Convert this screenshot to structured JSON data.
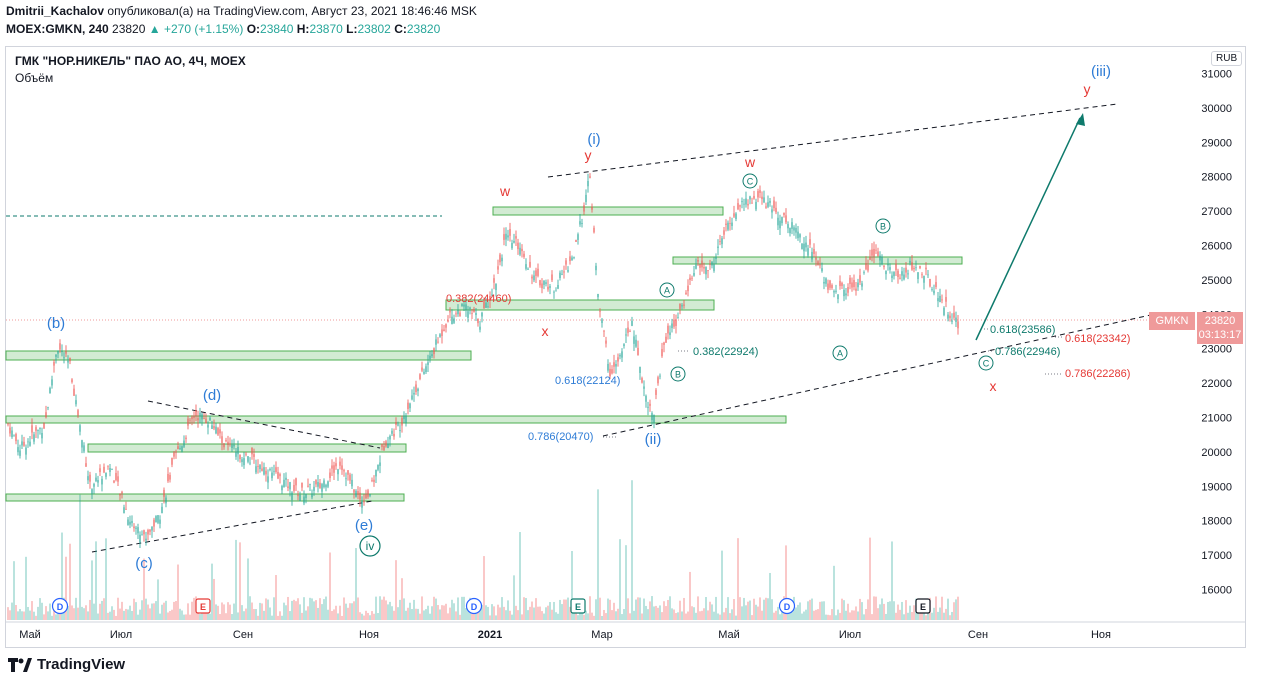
{
  "header": {
    "author": "Dmitrii_Kachalov",
    "published_text": "опубликовал(а) на TradingView.com, Август 23, 2021 18:46:46 MSK",
    "ticker_line": "MOEX:GMKN, 240",
    "last": "23820",
    "change": "▲ +270 (+1.15%)",
    "o_label": "O:",
    "o": "23840",
    "h_label": "H:",
    "h": "23870",
    "l_label": "L:",
    "l": "23802",
    "c_label": "C:",
    "c": "23820"
  },
  "chart": {
    "symbol_title": "ГМК \"НОР.НИКЕЛЬ\" ПАО АО, 4Ч, MOEX",
    "volume_label": "Объём",
    "currency": "RUB",
    "price_tag": "GMKN",
    "price": "23820",
    "countdown": "03:13:17"
  },
  "chart_data": {
    "type": "candlestick",
    "y_ticks": [
      "31000",
      "30000",
      "29000",
      "28000",
      "27000",
      "26000",
      "25000",
      "24000",
      "23000",
      "22000",
      "21000",
      "20000",
      "19000",
      "18000",
      "17000",
      "16000"
    ],
    "x_ticks": [
      "Май",
      "Июл",
      "Сен",
      "Ноя",
      "2021",
      "Мар",
      "Май",
      "Июл",
      "Сен",
      "Ноя"
    ],
    "ylim": [
      15500,
      31500
    ],
    "annotations": [
      {
        "text": "(b)",
        "color": "#2e7cd6"
      },
      {
        "text": "(c)",
        "color": "#2e7cd6"
      },
      {
        "text": "(d)",
        "color": "#2e7cd6"
      },
      {
        "text": "(e)",
        "color": "#2e7cd6"
      },
      {
        "text": "iv",
        "color": "#0e7a6c"
      },
      {
        "text": "(i)",
        "color": "#2e7cd6"
      },
      {
        "text": "(ii)",
        "color": "#2e7cd6"
      },
      {
        "text": "(iii)",
        "color": "#2e7cd6"
      },
      {
        "text": "y",
        "color": "#e53935"
      },
      {
        "text": "w",
        "color": "#e53935"
      },
      {
        "text": "x",
        "color": "#e53935"
      },
      {
        "text": "0.382(24460)",
        "color": "#e53935"
      },
      {
        "text": "0.618(22124)",
        "color": "#2e7cd6"
      },
      {
        "text": "0.786(20470)",
        "color": "#2e7cd6"
      },
      {
        "text": "0.382(22924)",
        "color": "#0e7a6c"
      },
      {
        "text": "0.618(23586)",
        "color": "#0e7a6c"
      },
      {
        "text": "0.786(22946)",
        "color": "#0e7a6c"
      },
      {
        "text": "0.618(23342)",
        "color": "#e53935"
      },
      {
        "text": "0.786(22286)",
        "color": "#e53935"
      },
      {
        "text": "A",
        "color": "#0e7a6c"
      },
      {
        "text": "B",
        "color": "#0e7a6c"
      },
      {
        "text": "C",
        "color": "#0e7a6c"
      }
    ],
    "event_markers": [
      "D",
      "E",
      "D",
      "E",
      "D",
      "E"
    ]
  },
  "footer": {
    "brand": "TradingView"
  }
}
